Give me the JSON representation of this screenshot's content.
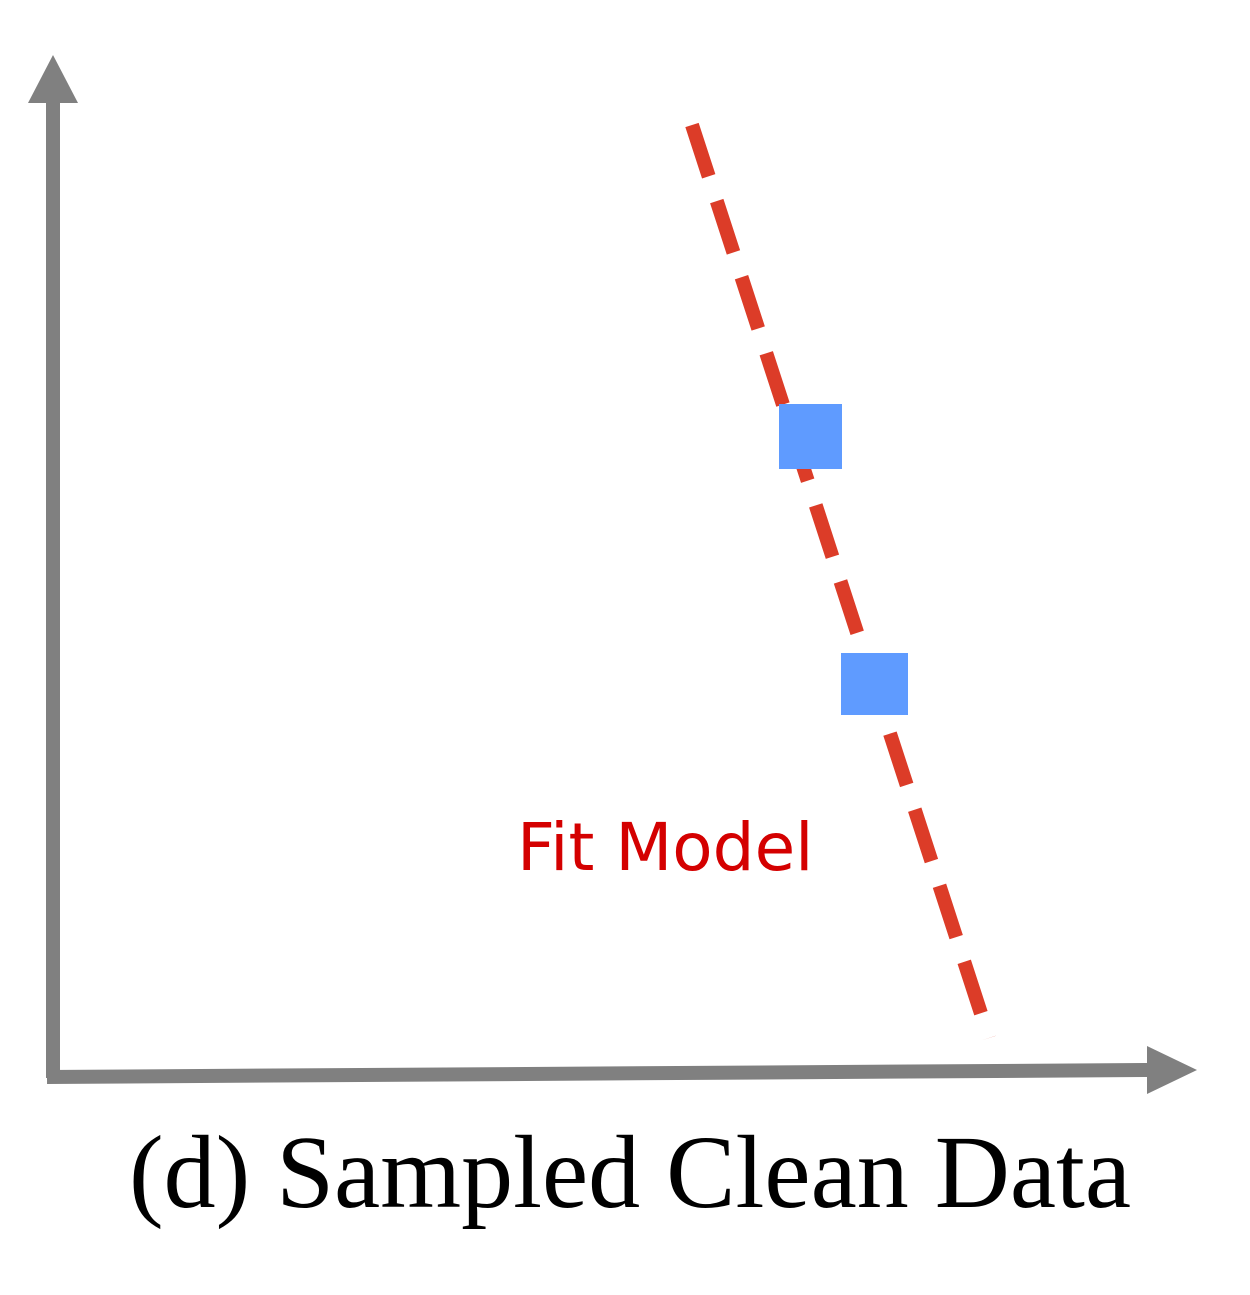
{
  "figure": {
    "fit_line_label": "Fit Model",
    "caption": "(d) Sampled Clean Data"
  },
  "colors": {
    "axis": "#808080",
    "fit_line": "#dc3c28",
    "sample_point": "#5f9bff",
    "fit_label": "#d40000"
  },
  "samples": {
    "count": 2,
    "marker": "blue-square"
  }
}
